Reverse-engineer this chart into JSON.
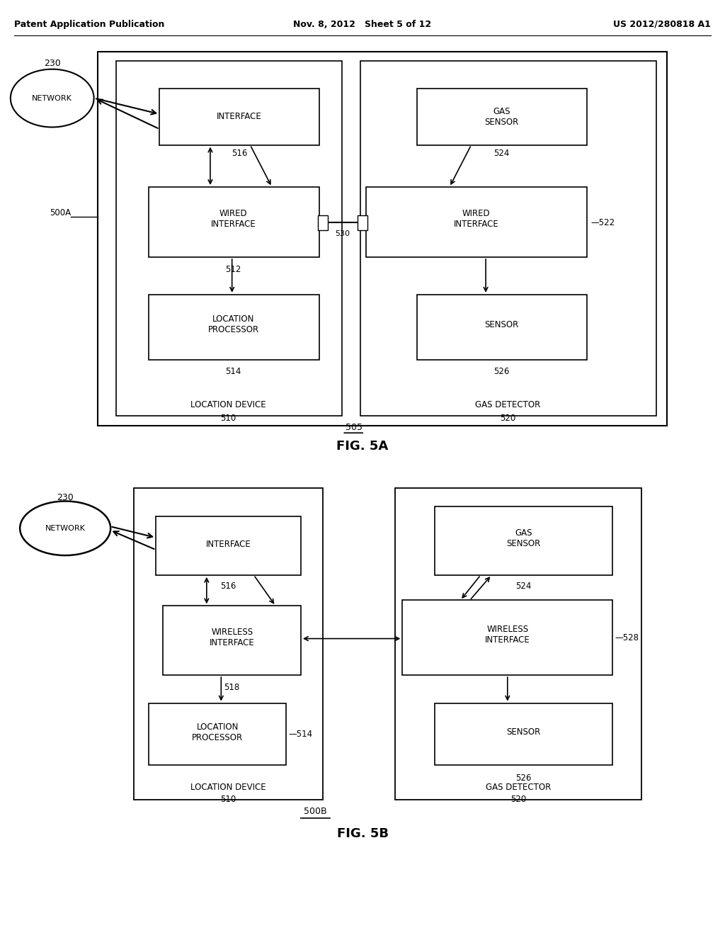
{
  "bg_color": "#ffffff",
  "text_color": "#000000",
  "header_left": "Patent Application Publication",
  "header_mid": "Nov. 8, 2012   Sheet 5 of 12",
  "header_right": "US 2012/280818 A1"
}
